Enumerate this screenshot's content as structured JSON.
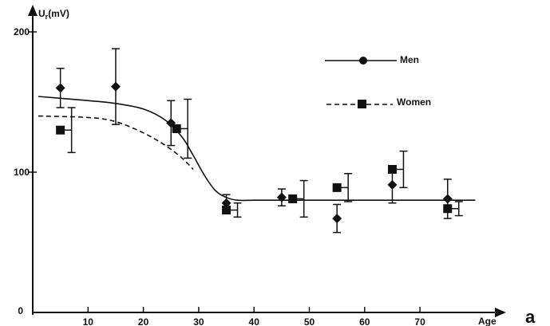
{
  "chart_data": {
    "type": "line",
    "ylabel": "U",
    "ylabel_sub": "r",
    "ylabel_unit": "(mV)",
    "xlabel": "Age",
    "panel_label": "a",
    "xlim": [
      0,
      84
    ],
    "ylim": [
      0,
      200
    ],
    "x_ticks": [
      10,
      20,
      30,
      40,
      50,
      60,
      70
    ],
    "y_ticks": [
      0,
      100,
      200
    ],
    "tick_labels_x": [
      "10",
      "20",
      "30",
      "40",
      "50",
      "60",
      "70"
    ],
    "tick_labels_y": [
      "0",
      "100",
      "200"
    ],
    "grid": false,
    "legend_position": "top-right",
    "series": [
      {
        "name": "Men",
        "marker": "diamond",
        "line_style": "solid",
        "color": "#111111",
        "points": [
          {
            "x": 5,
            "y": 160,
            "err": 14
          },
          {
            "x": 15,
            "y": 161,
            "err": 27
          },
          {
            "x": 25,
            "y": 135,
            "err": 16
          },
          {
            "x": 35,
            "y": 78,
            "err": 6
          },
          {
            "x": 45,
            "y": 82,
            "err": 6
          },
          {
            "x": 55,
            "y": 67,
            "err": 10
          },
          {
            "x": 65,
            "y": 91,
            "err": 13
          },
          {
            "x": 75,
            "y": 81,
            "err": 14
          }
        ],
        "curve": [
          [
            1,
            154
          ],
          [
            10,
            151
          ],
          [
            15,
            149
          ],
          [
            20,
            145
          ],
          [
            24,
            137
          ],
          [
            27,
            125
          ],
          [
            29,
            112
          ],
          [
            31,
            98
          ],
          [
            33,
            87
          ],
          [
            35,
            82
          ],
          [
            37,
            80
          ],
          [
            40,
            80
          ],
          [
            50,
            80
          ],
          [
            60,
            80
          ],
          [
            70,
            80
          ],
          [
            80,
            80
          ]
        ]
      },
      {
        "name": "Women",
        "marker": "square",
        "line_style": "dashed",
        "color": "#111111",
        "points": [
          {
            "x": 5,
            "y": 130,
            "err": 16
          },
          {
            "x": 26,
            "y": 131,
            "err": 21
          },
          {
            "x": 35,
            "y": 73,
            "err": 5
          },
          {
            "x": 47,
            "y": 81,
            "err": 13
          },
          {
            "x": 55,
            "y": 89,
            "err": 10
          },
          {
            "x": 65,
            "y": 102,
            "err": 13
          },
          {
            "x": 75,
            "y": 74,
            "err": 5
          }
        ],
        "curve": [
          [
            1,
            140
          ],
          [
            10,
            139
          ],
          [
            15,
            136
          ],
          [
            20,
            128
          ],
          [
            24,
            119
          ],
          [
            27,
            110
          ],
          [
            29,
            102
          ]
        ]
      }
    ]
  }
}
